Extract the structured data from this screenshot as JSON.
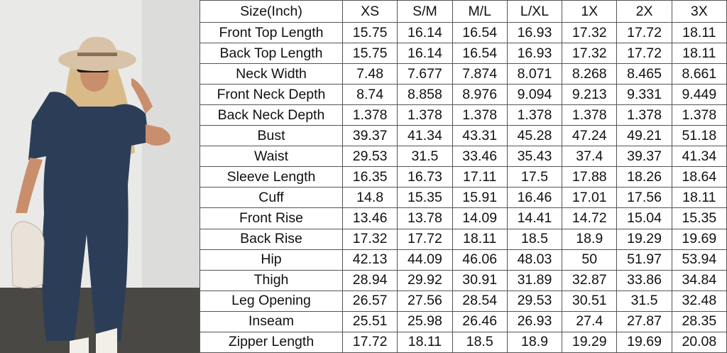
{
  "size_chart": {
    "header": [
      "Size(Inch)",
      "XS",
      "S/M",
      "M/L",
      "L/XL",
      "1X",
      "2X",
      "3X"
    ],
    "rows": [
      {
        "label": "Front Top Length",
        "values": [
          "15.75",
          "16.14",
          "16.54",
          "16.93",
          "17.32",
          "17.72",
          "18.11"
        ]
      },
      {
        "label": "Back Top Length",
        "values": [
          "15.75",
          "16.14",
          "16.54",
          "16.93",
          "17.32",
          "17.72",
          "18.11"
        ]
      },
      {
        "label": "Neck Width",
        "values": [
          "7.48",
          "7.677",
          "7.874",
          "8.071",
          "8.268",
          "8.465",
          "8.661"
        ]
      },
      {
        "label": "Front Neck Depth",
        "values": [
          "8.74",
          "8.858",
          "8.976",
          "9.094",
          "9.213",
          "9.331",
          "9.449"
        ]
      },
      {
        "label": "Back Neck Depth",
        "values": [
          "1.378",
          "1.378",
          "1.378",
          "1.378",
          "1.378",
          "1.378",
          "1.378"
        ]
      },
      {
        "label": "Bust",
        "values": [
          "39.37",
          "41.34",
          "43.31",
          "45.28",
          "47.24",
          "49.21",
          "51.18"
        ]
      },
      {
        "label": "Waist",
        "values": [
          "29.53",
          "31.5",
          "33.46",
          "35.43",
          "37.4",
          "39.37",
          "41.34"
        ]
      },
      {
        "label": "Sleeve Length",
        "values": [
          "16.35",
          "16.73",
          "17.11",
          "17.5",
          "17.88",
          "18.26",
          "18.64"
        ]
      },
      {
        "label": "Cuff",
        "values": [
          "14.8",
          "15.35",
          "15.91",
          "16.46",
          "17.01",
          "17.56",
          "18.11"
        ]
      },
      {
        "label": "Front Rise",
        "values": [
          "13.46",
          "13.78",
          "14.09",
          "14.41",
          "14.72",
          "15.04",
          "15.35"
        ]
      },
      {
        "label": "Back Rise",
        "values": [
          "17.32",
          "17.72",
          "18.11",
          "18.5",
          "18.9",
          "19.29",
          "19.69"
        ]
      },
      {
        "label": "Hip",
        "values": [
          "42.13",
          "44.09",
          "46.06",
          "48.03",
          "50",
          "51.97",
          "53.94"
        ]
      },
      {
        "label": "Thigh",
        "values": [
          "28.94",
          "29.92",
          "30.91",
          "31.89",
          "32.87",
          "33.86",
          "34.84"
        ]
      },
      {
        "label": "Leg Opening",
        "values": [
          "26.57",
          "27.56",
          "28.54",
          "29.53",
          "30.51",
          "31.5",
          "32.48"
        ]
      },
      {
        "label": "Inseam",
        "values": [
          "25.51",
          "25.98",
          "26.46",
          "26.93",
          "27.4",
          "27.87",
          "28.35"
        ]
      },
      {
        "label": "Zipper Length",
        "values": [
          "17.72",
          "18.11",
          "18.5",
          "18.9",
          "19.29",
          "19.69",
          "20.08"
        ]
      }
    ]
  },
  "photo": {
    "subject": "model-in-navy-jumpsuit",
    "colors": {
      "wall": "#e9e9e7",
      "floor": "#4a4845",
      "jumpsuit": "#2c3e57",
      "hat": "#d8c3a8",
      "hair": "#d9bb8a",
      "skin": "#c98e6c",
      "bag": "#e8e2d8"
    }
  }
}
